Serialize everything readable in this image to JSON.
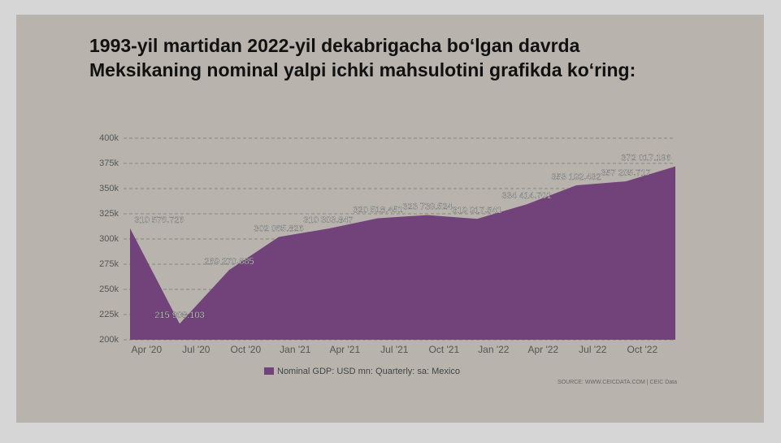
{
  "chart_data": {
    "type": "area",
    "title": [
      "1993-yil martidan 2022-yil dekabrigacha bo‘lgan davrda",
      "Meksikaning nominal yalpi ichki mahsulotini grafikda ko‘ring:"
    ],
    "series": [
      {
        "name": "Nominal GDP: USD mn: Quarterly: sa: Mexico",
        "color": "#71437a",
        "values": [
          310576.726,
          215908.103,
          269270.885,
          302065.826,
          310303.847,
          320518.451,
          323739.524,
          319917.541,
          334414.701,
          353192.432,
          357205.717,
          372017.196
        ],
        "value_labels": [
          "310 576.726",
          "215 908.103",
          "269 270.885",
          "302 065.826",
          "310 303.847",
          "320 518.451",
          "323 739.524",
          "319 917.541",
          "334 414.701",
          "353 192.432",
          "357 205.717",
          "372 017.196"
        ]
      }
    ],
    "xticks": [
      "Apr '20",
      "Jul '20",
      "Oct '20",
      "Jan '21",
      "Apr '21",
      "Jul '21",
      "Oct '21",
      "Jan '22",
      "Apr '22",
      "Jul '22",
      "Oct '22"
    ],
    "ylim": [
      200000,
      400000
    ],
    "yticks": [
      {
        "value": 200000,
        "label": "200k"
      },
      {
        "value": 225000,
        "label": "225k"
      },
      {
        "value": 250000,
        "label": "250k"
      },
      {
        "value": 275000,
        "label": "275k"
      },
      {
        "value": 300000,
        "label": "300k"
      },
      {
        "value": 325000,
        "label": "325k"
      },
      {
        "value": 350000,
        "label": "350k"
      },
      {
        "value": 375000,
        "label": "375k"
      },
      {
        "value": 400000,
        "label": "400k"
      }
    ],
    "grid": true,
    "source": "SOURCE: WWW.CEICDATA.COM | CEIC Data"
  }
}
